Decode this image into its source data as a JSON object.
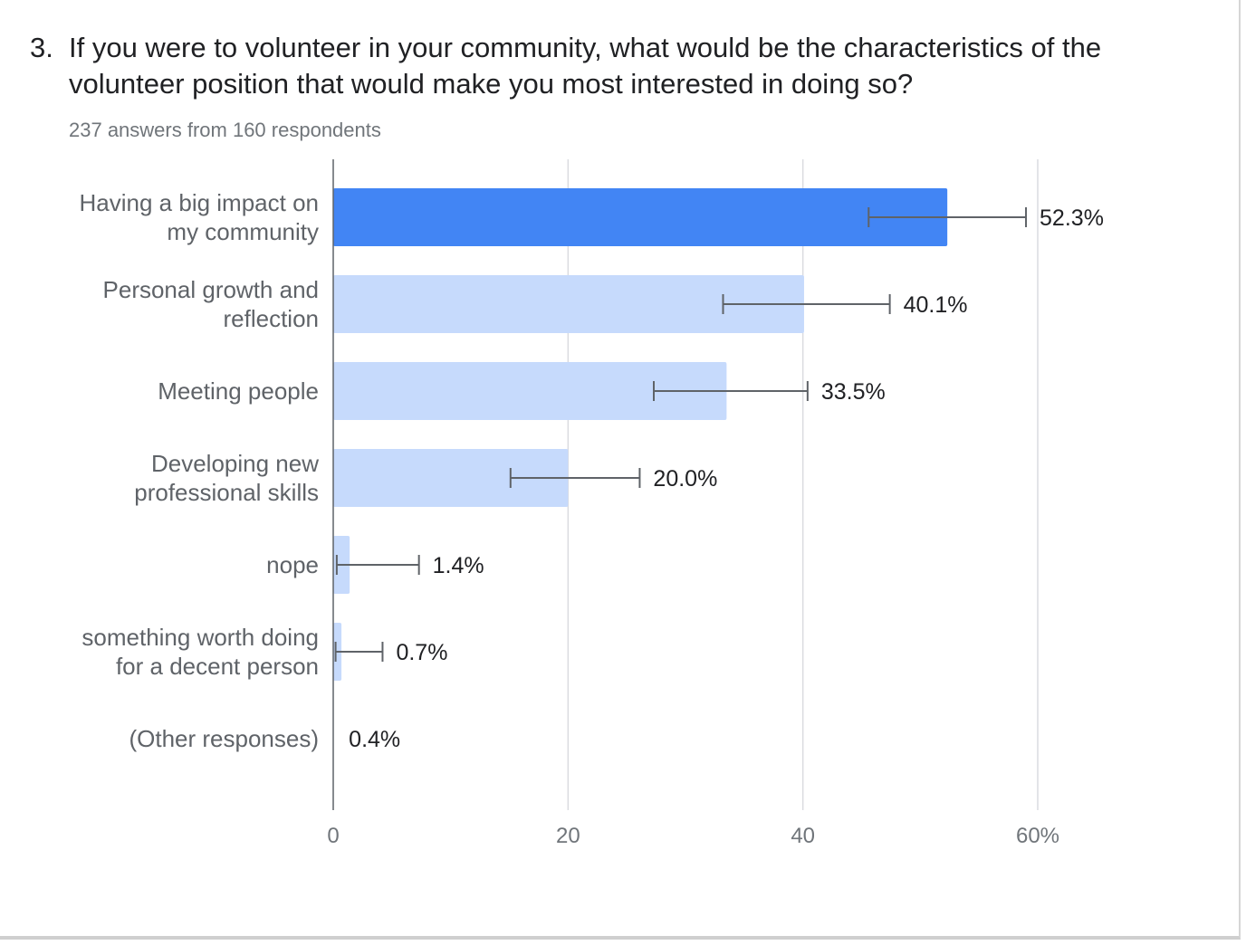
{
  "question": {
    "number": "3.",
    "text": "If you were to volunteer in your community, what would be the characteristics of the volunteer position that would make you most interested in doing so?",
    "summary": "237 answers from 160 respondents"
  },
  "colors": {
    "highlight": "#4285f4",
    "bar": "#c6dafc",
    "grid": "#dadce0",
    "axis": "#5f6368",
    "error": "#5f6368"
  },
  "chart_data": {
    "type": "bar",
    "orientation": "horizontal",
    "categories": [
      [
        "Having a big impact on",
        "my community"
      ],
      [
        "Personal growth and",
        "reflection"
      ],
      [
        "Meeting people"
      ],
      [
        "Developing new",
        "professional skills"
      ],
      [
        "nope"
      ],
      [
        "something worth doing",
        "for a decent person"
      ],
      [
        "(Other responses)"
      ]
    ],
    "values": [
      52.3,
      40.1,
      33.5,
      20.0,
      1.4,
      0.7,
      0.4
    ],
    "data_labels": [
      "52.3%",
      "40.1%",
      "33.5%",
      "20.0%",
      "1.4%",
      "0.7%",
      "0.4%"
    ],
    "error_bars": [
      [
        45.6,
        59.0
      ],
      [
        33.2,
        47.4
      ],
      [
        27.3,
        40.4
      ],
      [
        15.1,
        26.1
      ],
      [
        0.3,
        7.3
      ],
      [
        0.2,
        4.2
      ],
      null
    ],
    "highlight_index": 0,
    "xlim": [
      0,
      60
    ],
    "xticks": [
      0,
      20,
      40,
      60
    ],
    "xtick_labels": [
      "0",
      "20",
      "40",
      "60%"
    ],
    "grid": true
  }
}
